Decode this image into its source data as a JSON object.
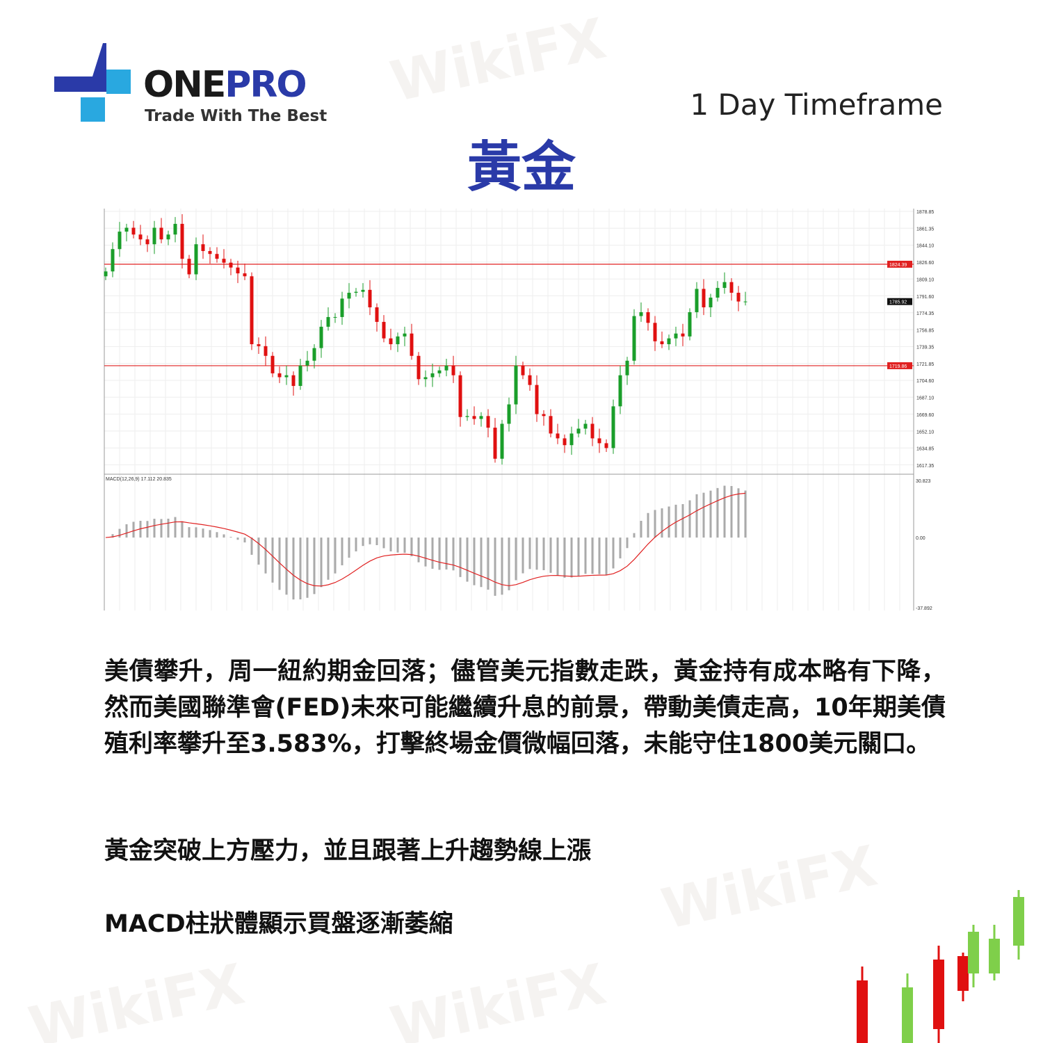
{
  "header": {
    "brand_one": "ONE",
    "brand_pro": "PRO",
    "tagline": "Trade With The Best",
    "timeframe": "1 Day Timeframe",
    "title": "黃金"
  },
  "watermark": "WikiFX",
  "colors": {
    "brand_blue": "#2a3aa8",
    "logo_cyan": "#29a8e0",
    "bull": "#1a9e2a",
    "bear": "#e01010",
    "level_line": "#e02020",
    "signal": "#e02020",
    "histogram": "#aaaaaa"
  },
  "chart_data": {
    "type": "candlestick",
    "price_ylim": [
      1609,
      1885
    ],
    "price_ticks": [
      "1878.85",
      "1861.35",
      "1844.10",
      "1826.60",
      "1809.10",
      "1791.60",
      "1774.35",
      "1756.85",
      "1739.35",
      "1721.85",
      "1704.60",
      "1687.10",
      "1669.60",
      "1652.10",
      "1634.85",
      "1617.35"
    ],
    "levels": [
      {
        "value": 1824.39,
        "label": "1824.39"
      },
      {
        "value": 1719.86,
        "label": "1719.86"
      }
    ],
    "current_price": {
      "value": 1785.92,
      "label": "1785.92"
    },
    "closes": [
      1817,
      1840,
      1858,
      1862,
      1855,
      1850,
      1845,
      1862,
      1850,
      1855,
      1866,
      1830,
      1814,
      1845,
      1838,
      1835,
      1830,
      1826,
      1821,
      1815,
      1812,
      1742,
      1740,
      1730,
      1712,
      1708,
      1710,
      1699,
      1720,
      1725,
      1738,
      1760,
      1770,
      1770,
      1789,
      1795,
      1796,
      1798,
      1780,
      1765,
      1748,
      1742,
      1750,
      1753,
      1730,
      1706,
      1708,
      1712,
      1715,
      1720,
      1710,
      1667,
      1668,
      1665,
      1668,
      1656,
      1624,
      1660,
      1680,
      1720,
      1710,
      1700,
      1670,
      1668,
      1650,
      1645,
      1638,
      1650,
      1655,
      1660,
      1645,
      1640,
      1635,
      1678,
      1710,
      1725,
      1771,
      1775,
      1764,
      1745,
      1742,
      1748,
      1753,
      1750,
      1775,
      1799,
      1780,
      1790,
      1800,
      1806,
      1795,
      1786,
      1786
    ],
    "grid": true,
    "macd": {
      "label": "MACD(12,26,9) 17.112 20.835",
      "ylim": [
        -37.892,
        30.823
      ],
      "ticks": [
        "30.823",
        "0.00",
        "-37.892"
      ]
    }
  },
  "body": {
    "paragraph": "美債攀升，周一紐約期金回落；儘管美元指數走跌，黃金持有成本略有下降，然而美國聯準會(FED)未來可能繼續升息的前景，帶動美債走高，10年期美債殖利率攀升至3.583%，打擊終場金價微幅回落，未能守住1800美元關口。",
    "point1": "黃金突破上方壓力，並且跟著上升趨勢線上漲",
    "point2": "MACD柱狀體顯示買盤逐漸萎縮"
  }
}
